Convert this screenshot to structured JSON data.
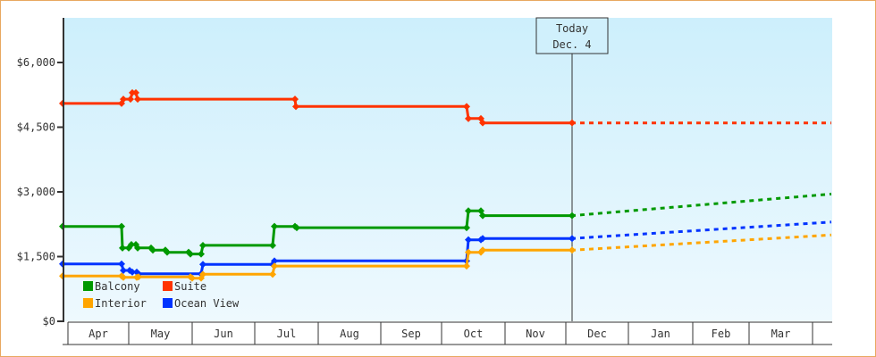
{
  "chart_data": {
    "type": "line",
    "title": "",
    "xlabel": "",
    "ylabel": "",
    "ylim": [
      0,
      7000
    ],
    "y_ticks": [
      "$0",
      "$1,500",
      "$3,000",
      "$4,500",
      "$6,000"
    ],
    "y_tick_values": [
      0,
      1500,
      3000,
      4500,
      6000
    ],
    "x_tick_labels": [
      "Apr",
      "May",
      "Jun",
      "Jul",
      "Aug",
      "Sep",
      "Oct",
      "Nov",
      "Dec",
      "Jan",
      "Feb",
      "Mar"
    ],
    "today_marker": {
      "line1": "Today",
      "line2": "Dec. 4"
    },
    "legend": [
      {
        "name": "Balcony",
        "color": "#009900"
      },
      {
        "name": "Suite",
        "color": "#ff3300"
      },
      {
        "name": "Interior",
        "color": "#ffa500"
      },
      {
        "name": "Ocean View",
        "color": "#0033ff"
      }
    ],
    "series": [
      {
        "name": "Suite",
        "color": "#ff3300",
        "points": [
          [
            70,
            5050
          ],
          [
            136,
            5050
          ],
          [
            138,
            5150
          ],
          [
            146,
            5150
          ],
          [
            148,
            5300
          ],
          [
            152,
            5300
          ],
          [
            154,
            5150
          ],
          [
            330,
            5150
          ],
          [
            331,
            4980
          ],
          [
            522,
            4980
          ],
          [
            524,
            4700
          ],
          [
            538,
            4700
          ],
          [
            540,
            4600
          ],
          [
            640,
            4600
          ]
        ],
        "forecast": [
          [
            640,
            4600
          ],
          [
            930,
            4600
          ]
        ]
      },
      {
        "name": "Balcony",
        "color": "#009900",
        "points": [
          [
            70,
            2200
          ],
          [
            136,
            2200
          ],
          [
            137,
            1700
          ],
          [
            144,
            1700
          ],
          [
            147,
            1780
          ],
          [
            152,
            1780
          ],
          [
            154,
            1700
          ],
          [
            169,
            1700
          ],
          [
            171,
            1650
          ],
          [
            185,
            1650
          ],
          [
            187,
            1600
          ],
          [
            211,
            1600
          ],
          [
            213,
            1560
          ],
          [
            225,
            1560
          ],
          [
            227,
            1760
          ],
          [
            305,
            1760
          ],
          [
            307,
            2200
          ],
          [
            330,
            2200
          ],
          [
            332,
            2170
          ],
          [
            522,
            2170
          ],
          [
            524,
            2560
          ],
          [
            538,
            2560
          ],
          [
            540,
            2450
          ],
          [
            640,
            2450
          ]
        ],
        "forecast": [
          [
            640,
            2450
          ],
          [
            930,
            2950
          ]
        ]
      },
      {
        "name": "Ocean View",
        "color": "#0033ff",
        "points": [
          [
            70,
            1330
          ],
          [
            136,
            1330
          ],
          [
            138,
            1180
          ],
          [
            145,
            1180
          ],
          [
            148,
            1140
          ],
          [
            153,
            1140
          ],
          [
            155,
            1100
          ],
          [
            225,
            1100
          ],
          [
            227,
            1320
          ],
          [
            305,
            1320
          ],
          [
            307,
            1400
          ],
          [
            522,
            1400
          ],
          [
            524,
            1890
          ],
          [
            538,
            1890
          ],
          [
            540,
            1920
          ],
          [
            640,
            1920
          ]
        ],
        "forecast": [
          [
            640,
            1920
          ],
          [
            930,
            2300
          ]
        ]
      },
      {
        "name": "Interior",
        "color": "#ffa500",
        "points": [
          [
            70,
            1050
          ],
          [
            136,
            1050
          ],
          [
            138,
            1020
          ],
          [
            153,
            1020
          ],
          [
            155,
            1030
          ],
          [
            213,
            1030
          ],
          [
            215,
            1000
          ],
          [
            225,
            1000
          ],
          [
            227,
            1090
          ],
          [
            305,
            1090
          ],
          [
            307,
            1280
          ],
          [
            522,
            1280
          ],
          [
            524,
            1600
          ],
          [
            538,
            1600
          ],
          [
            540,
            1650
          ],
          [
            640,
            1650
          ]
        ],
        "forecast": [
          [
            640,
            1650
          ],
          [
            930,
            2000
          ]
        ]
      }
    ]
  }
}
